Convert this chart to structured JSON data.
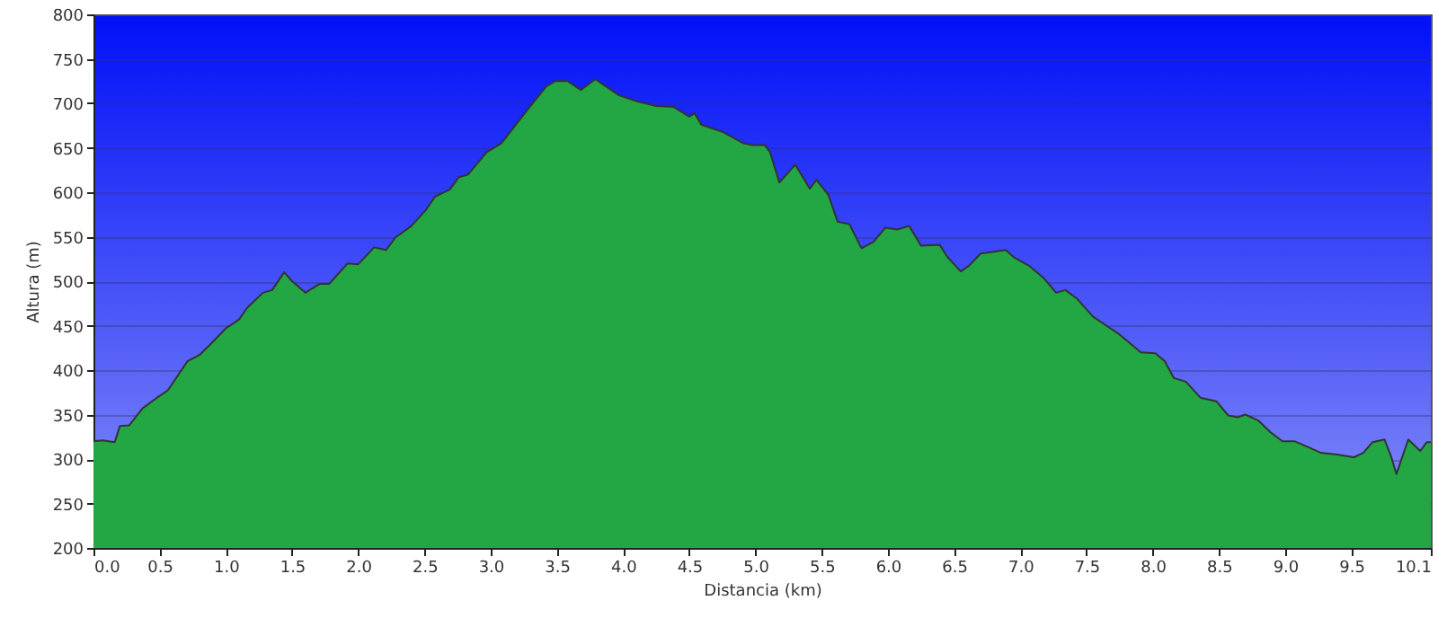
{
  "chart_data": {
    "type": "area",
    "xlabel": "Distancia (km)",
    "ylabel": "Altura (m)",
    "xlim": [
      0,
      10.1
    ],
    "ylim": [
      200,
      800
    ],
    "xticks": [
      {
        "value": 0,
        "label": "0.0"
      },
      0.5,
      {
        "value": 1,
        "label": "1.0"
      },
      1.5,
      {
        "value": 2,
        "label": "2.0"
      },
      2.5,
      {
        "value": 3,
        "label": "3.0"
      },
      3.5,
      {
        "value": 4,
        "label": "4.0"
      },
      4.5,
      {
        "value": 5,
        "label": "5.0"
      },
      5.5,
      {
        "value": 6,
        "label": "6.0"
      },
      6.5,
      {
        "value": 7,
        "label": "7.0"
      },
      7.5,
      {
        "value": 8,
        "label": "8.0"
      },
      8.5,
      {
        "value": 9,
        "label": "9.0"
      },
      9.5,
      10.1
    ],
    "yticks": [
      200,
      250,
      300,
      350,
      400,
      450,
      500,
      550,
      600,
      650,
      700,
      750,
      800
    ],
    "grid": "y",
    "x": [
      0,
      0.07,
      0.16,
      0.2,
      0.27,
      0.37,
      0.48,
      0.56,
      0.71,
      0.8,
      0.89,
      1.0,
      1.1,
      1.16,
      1.28,
      1.35,
      1.44,
      1.5,
      1.6,
      1.71,
      1.78,
      1.92,
      2.0,
      2.12,
      2.21,
      2.28,
      2.4,
      2.51,
      2.58,
      2.69,
      2.76,
      2.83,
      2.97,
      3.08,
      3.17,
      3.29,
      3.42,
      3.49,
      3.58,
      3.68,
      3.79,
      3.97,
      4.11,
      4.25,
      4.38,
      4.5,
      4.54,
      4.59,
      4.75,
      4.91,
      4.98,
      5.07,
      5.11,
      5.18,
      5.3,
      5.41,
      5.46,
      5.55,
      5.62,
      5.71,
      5.8,
      5.89,
      5.98,
      6.07,
      6.16,
      6.25,
      6.39,
      6.45,
      6.55,
      6.61,
      6.7,
      6.8,
      6.89,
      6.95,
      7.07,
      7.18,
      7.27,
      7.34,
      7.43,
      7.55,
      7.66,
      7.75,
      7.91,
      8.02,
      8.09,
      8.16,
      8.25,
      8.36,
      8.48,
      8.57,
      8.64,
      8.7,
      8.8,
      8.89,
      8.98,
      9.07,
      9.18,
      9.27,
      9.39,
      9.52,
      9.59,
      9.66,
      9.75,
      9.8,
      9.84,
      9.93,
      10.02,
      10.07,
      10.1
    ],
    "series": [
      {
        "color": "#22a744",
        "values": [
          320,
          321,
          319,
          337,
          338,
          357,
          369,
          377,
          410,
          417,
          430,
          447,
          457,
          470,
          487,
          490,
          510,
          500,
          487,
          497,
          497,
          520,
          519,
          538,
          535,
          549,
          562,
          580,
          595,
          603,
          617,
          620,
          645,
          655,
          672,
          695,
          719,
          725,
          725,
          715,
          727,
          709,
          702,
          697,
          696,
          685,
          689,
          676,
          668,
          655,
          653,
          653,
          645,
          611,
          631,
          604,
          614,
          597,
          567,
          564,
          537,
          544,
          560,
          558,
          562,
          540,
          541,
          527,
          511,
          517,
          531,
          533,
          535,
          527,
          517,
          503,
          487,
          490,
          480,
          460,
          449,
          440,
          420,
          419,
          410,
          391,
          387,
          369,
          365,
          349,
          347,
          350,
          343,
          330,
          320,
          320,
          313,
          307,
          305,
          302,
          307,
          319,
          322,
          303,
          283,
          322,
          309,
          319,
          319
        ]
      }
    ]
  }
}
